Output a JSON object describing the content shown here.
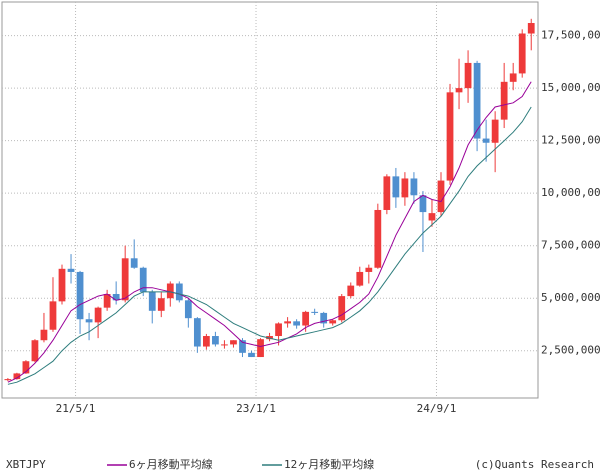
{
  "chart_data": {
    "type": "candlestick",
    "symbol": "XBTJPY",
    "credit": "(c)Quants Research",
    "up_color": "#ee3a3a",
    "down_color": "#4f8fcf",
    "grid": true,
    "xlim": [
      -0.65,
      58.75
    ],
    "xticks": [
      {
        "value": 7.5,
        "label": "21/5/1"
      },
      {
        "value": 27.5,
        "label": "23/1/1"
      },
      {
        "value": 47.5,
        "label": "24/9/1"
      }
    ],
    "ylim": [
      250000,
      19100000
    ],
    "yticks": [
      {
        "value": 2500000,
        "label": "2,500,000"
      },
      {
        "value": 5000000,
        "label": "5,000,000"
      },
      {
        "value": 7500000,
        "label": "7,500,000"
      },
      {
        "value": 10000000,
        "label": "10,000,000"
      },
      {
        "value": 12500000,
        "label": "12,500,000"
      },
      {
        "value": 15000000,
        "label": "15,000,000"
      },
      {
        "value": 17500000,
        "label": "17,500,000"
      }
    ],
    "open": [
      1100000,
      1150000,
      1420000,
      2000000,
      3000000,
      3500000,
      4850000,
      6400000,
      6250000,
      4000000,
      3850000,
      4550000,
      5200000,
      4900000,
      6900000,
      6450000,
      5300000,
      4400000,
      5000000,
      5700000,
      4900000,
      4050000,
      2700000,
      3200000,
      2800000,
      2800000,
      3000000,
      2400000,
      2200000,
      3050000,
      3200000,
      3800000,
      3900000,
      3700000,
      4350000,
      4300000,
      3800000,
      3950000,
      5100000,
      5600000,
      6250000,
      6450000,
      9200000,
      10800000,
      9800000,
      10700000,
      9900000,
      8700000,
      9100000,
      10600000,
      14800000,
      15000000,
      16200000,
      12600000,
      12400000,
      13500000,
      15300000,
      15700000,
      17600000
    ],
    "high": [
      1200000,
      1450000,
      2050000,
      3050000,
      4300000,
      6000000,
      6600000,
      7100000,
      6300000,
      4300000,
      4600000,
      5400000,
      5800000,
      7500000,
      7800000,
      6500000,
      5400000,
      5300000,
      5800000,
      5800000,
      5000000,
      4100000,
      3300000,
      3400000,
      3000000,
      3000000,
      3100000,
      2500000,
      3100000,
      3350000,
      3850000,
      4100000,
      4000000,
      4400000,
      4500000,
      4350000,
      4000000,
      5200000,
      5750000,
      6500000,
      6600000,
      9500000,
      10900000,
      11200000,
      11000000,
      11000000,
      10100000,
      9700000,
      11000000,
      15200000,
      16400000,
      16800000,
      16300000,
      13500000,
      13900000,
      16200000,
      16200000,
      17800000,
      18300000
    ],
    "low": [
      1050000,
      1120000,
      1400000,
      1950000,
      2900000,
      3400000,
      4700000,
      5700000,
      3300000,
      3000000,
      3100000,
      4400000,
      4700000,
      4800000,
      6400000,
      5100000,
      3800000,
      4100000,
      4600000,
      4800000,
      3600000,
      2400000,
      2550000,
      2700000,
      2600000,
      2650000,
      2200000,
      2200000,
      2200000,
      2950000,
      2750000,
      3600000,
      3550000,
      3400000,
      4200000,
      3600000,
      3700000,
      3850000,
      5000000,
      5550000,
      5700000,
      6400000,
      9000000,
      9300000,
      9400000,
      9500000,
      7200000,
      8400000,
      8900000,
      10400000,
      14000000,
      14300000,
      12000000,
      11500000,
      11000000,
      13100000,
      14900000,
      15500000,
      16800000
    ],
    "close": [
      1150000,
      1420000,
      2000000,
      3000000,
      3500000,
      4850000,
      6400000,
      6250000,
      4000000,
      3850000,
      4550000,
      5200000,
      4900000,
      6900000,
      6450000,
      5300000,
      4400000,
      5000000,
      5700000,
      4900000,
      4050000,
      2700000,
      3200000,
      2800000,
      2800000,
      3000000,
      2400000,
      2200000,
      3050000,
      3200000,
      3800000,
      3900000,
      3700000,
      4350000,
      4300000,
      3800000,
      3950000,
      5100000,
      5600000,
      6250000,
      6450000,
      9200000,
      10800000,
      9800000,
      10700000,
      9900000,
      9100000,
      9050000,
      10600000,
      14800000,
      15000000,
      16200000,
      12600000,
      12400000,
      13500000,
      15300000,
      15700000,
      17600000,
      18100000
    ],
    "series": [
      {
        "name": "6ヶ月移動平均線",
        "color": "#990099",
        "values": [
          1000000,
          1200000,
          1500000,
          1900000,
          2400000,
          3000000,
          3700000,
          4400000,
          4700000,
          4900000,
          5100000,
          5200000,
          4900000,
          5000000,
          5300000,
          5500000,
          5500000,
          5400000,
          5300000,
          5200000,
          5000000,
          4600000,
          4300000,
          4000000,
          3700000,
          3300000,
          2900000,
          2800000,
          2700000,
          2800000,
          2900000,
          3100000,
          3300000,
          3600000,
          3800000,
          3900000,
          4000000,
          4200000,
          4500000,
          4800000,
          5200000,
          6000000,
          7000000,
          8000000,
          8800000,
          9600000,
          9900000,
          9700000,
          9600000,
          10300000,
          11200000,
          12300000,
          13000000,
          13600000,
          14100000,
          14200000,
          14300000,
          14600000,
          15300000
        ]
      },
      {
        "name": "12ヶ月移動平均線",
        "color": "#2e7d7d",
        "values": [
          900000,
          1000000,
          1200000,
          1400000,
          1700000,
          2000000,
          2500000,
          2900000,
          3200000,
          3400000,
          3700000,
          4000000,
          4300000,
          4700000,
          5100000,
          5300000,
          5300000,
          5300000,
          5300000,
          5200000,
          5100000,
          4900000,
          4700000,
          4400000,
          4100000,
          3800000,
          3600000,
          3400000,
          3200000,
          3100000,
          3000000,
          3100000,
          3200000,
          3300000,
          3400000,
          3500000,
          3600000,
          3800000,
          4100000,
          4400000,
          4800000,
          5300000,
          5900000,
          6500000,
          7100000,
          7600000,
          8100000,
          8500000,
          8900000,
          9500000,
          10100000,
          10800000,
          11300000,
          11700000,
          12100000,
          12500000,
          12900000,
          13400000,
          14100000
        ]
      }
    ]
  }
}
